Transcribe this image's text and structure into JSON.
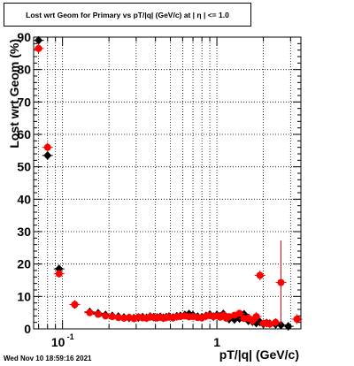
{
  "title": "Lost wrt Geom for Primary vs pT/|q| (GeV/c) at |  η  | <= 1.0",
  "timestamp": "Wed Nov 10 18:59:16 2021",
  "chart_data": {
    "type": "scatter",
    "title": "Lost wrt Geom for Primary vs pT/|q| (GeV/c) at |  η  | <= 1.0",
    "xlabel": "pT/|q| (GeV/c)",
    "ylabel": "Lost wrt Geom (%)",
    "xscale": "log",
    "xlim": [
      0.065,
      3.5
    ],
    "ylim": [
      0,
      90
    ],
    "yticks": [
      0,
      10,
      20,
      30,
      40,
      50,
      60,
      70,
      80,
      90
    ],
    "xtick_labels": [
      {
        "value": 0.1,
        "label": "10",
        "sup": "-1"
      },
      {
        "value": 1,
        "label": "1",
        "sup": ""
      }
    ],
    "grid": true,
    "colors": {
      "black_series": "#000000",
      "red_series": "#ff0000"
    },
    "series": [
      {
        "marker": "diamond",
        "color": "#000000",
        "x": [
          0.07,
          0.08,
          0.095,
          0.12,
          0.15,
          0.17,
          0.19,
          0.21,
          0.23,
          0.25,
          0.27,
          0.29,
          0.31,
          0.33,
          0.35,
          0.37,
          0.39,
          0.41,
          0.43,
          0.45,
          0.47,
          0.49,
          0.52,
          0.55,
          0.58,
          0.62,
          0.66,
          0.7,
          0.75,
          0.8,
          0.85,
          0.9,
          0.95,
          1.0,
          1.05,
          1.1,
          1.15,
          1.2,
          1.3,
          1.4,
          1.5,
          1.6,
          1.7,
          1.8,
          1.9,
          2.0,
          2.1,
          2.2,
          2.4,
          2.6,
          2.9
        ],
        "y": [
          89,
          53.5,
          18.5,
          7.5,
          5.2,
          4.8,
          4.3,
          4.0,
          3.8,
          3.5,
          3.4,
          3.3,
          3.5,
          3.6,
          3.4,
          3.8,
          3.6,
          3.5,
          3.7,
          3.4,
          3.6,
          3.8,
          3.5,
          3.9,
          4.0,
          4.3,
          4.6,
          4.2,
          3.8,
          3.6,
          4.0,
          4.4,
          3.8,
          4.3,
          3.9,
          4.6,
          3.5,
          3.0,
          2.9,
          3.2,
          4.5,
          2.5,
          2.2,
          1.8,
          2.1,
          1.5,
          1.8,
          1.6,
          1.4,
          1.2,
          0.8
        ]
      },
      {
        "marker": "circle",
        "color": "#ff0000",
        "x": [
          0.07,
          0.08,
          0.095,
          0.12,
          0.15,
          0.17,
          0.19,
          0.21,
          0.23,
          0.25,
          0.27,
          0.29,
          0.31,
          0.33,
          0.35,
          0.37,
          0.39,
          0.41,
          0.43,
          0.45,
          0.47,
          0.49,
          0.52,
          0.55,
          0.58,
          0.62,
          0.66,
          0.7,
          0.75,
          0.8,
          0.85,
          0.9,
          0.95,
          1.0,
          1.05,
          1.1,
          1.15,
          1.2,
          1.3,
          1.4,
          1.5,
          1.6,
          1.7,
          1.8,
          1.9,
          2.0,
          2.1,
          2.2,
          2.4,
          2.6,
          3.3
        ],
        "y": [
          86.5,
          56,
          17,
          7.5,
          5.0,
          4.5,
          4.0,
          3.8,
          3.5,
          3.3,
          3.5,
          3.2,
          3.6,
          3.4,
          3.3,
          3.7,
          3.5,
          3.4,
          3.6,
          3.3,
          3.5,
          3.7,
          3.4,
          3.7,
          3.8,
          4.0,
          3.7,
          3.8,
          3.5,
          3.4,
          3.9,
          4.1,
          3.8,
          4.0,
          3.6,
          4.2,
          3.3,
          3.8,
          4.2,
          4.8,
          3.2,
          3.3,
          2.5,
          3.8,
          16.5,
          1.7,
          1.8,
          1.5,
          2.0,
          14.3,
          3.0
        ],
        "yerr": [
          1.5,
          1.5,
          1.2,
          0.6,
          0.4,
          0.4,
          0.4,
          0.3,
          0.3,
          0.3,
          0.3,
          0.3,
          0.3,
          0.3,
          0.3,
          0.3,
          0.3,
          0.3,
          0.3,
          0.3,
          0.3,
          0.3,
          0.3,
          0.3,
          0.3,
          0.4,
          0.4,
          0.4,
          0.4,
          0.4,
          0.5,
          0.5,
          0.5,
          0.5,
          0.5,
          0.6,
          0.6,
          0.7,
          0.8,
          1.0,
          1.0,
          1.2,
          1.2,
          1.4,
          1.5,
          1.0,
          1.0,
          1.2,
          1.3,
          13.0,
          1.5
        ]
      }
    ]
  }
}
